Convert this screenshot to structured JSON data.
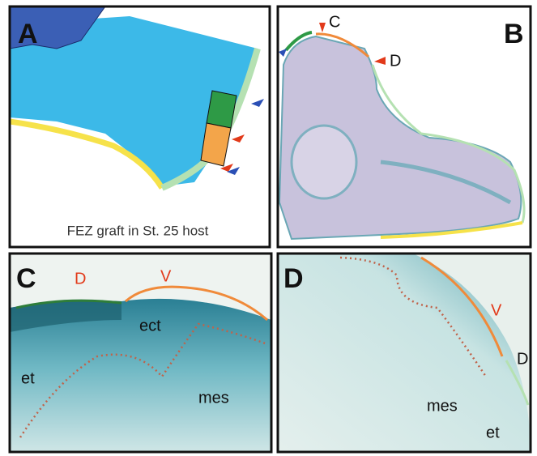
{
  "panels": [
    {
      "label": "A",
      "caption": "FEZ graft in St. 25 host"
    },
    {
      "label": "B",
      "markers": [
        "C",
        "D"
      ]
    },
    {
      "label": "C",
      "annotations": [
        "D",
        "V",
        "ect",
        "et",
        "mes"
      ]
    },
    {
      "label": "D",
      "annotations": [
        "V",
        "D",
        "mes",
        "et"
      ]
    }
  ]
}
